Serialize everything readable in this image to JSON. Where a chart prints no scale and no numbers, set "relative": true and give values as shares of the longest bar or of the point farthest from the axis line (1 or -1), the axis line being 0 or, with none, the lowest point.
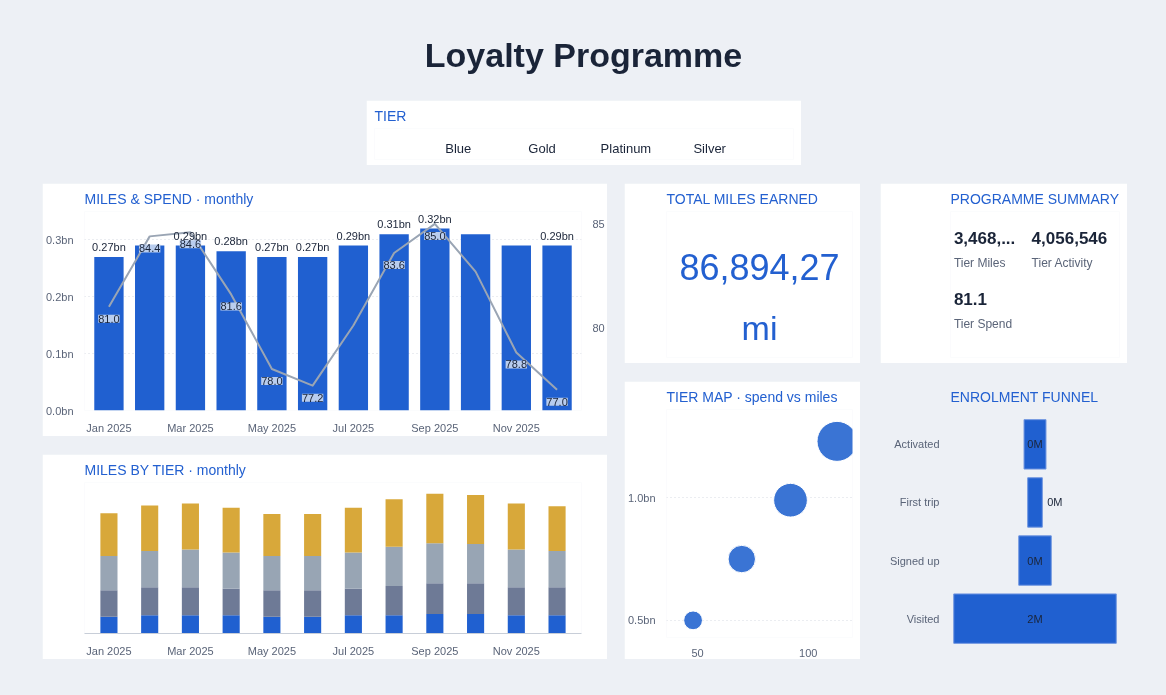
{
  "chart_data": [
    {
      "type": "other",
      "title": "Loyalty Programme"
    },
    {
      "type": "other",
      "title": "TIER",
      "annotations": [
        "Blue",
        "Gold",
        "Platinum",
        "Silver"
      ]
    },
    {
      "type": "bar",
      "title": "MILES & SPEND · monthly",
      "categories": [
        "Jan 2025",
        null,
        "Mar 2025",
        null,
        "May 2025",
        null,
        "Jul 2025",
        null,
        "Sep 2025",
        null,
        "Nov 2025",
        null
      ],
      "series": [
        {
          "type": "bar",
          "color": "#2060d0",
          "values": [
            0.27,
            0.29,
            0.29,
            0.28,
            0.27,
            0.27,
            0.29,
            0.31,
            0.32,
            0.31,
            0.29,
            0.29
          ],
          "value_labels": [
            "0.27bn",
            null,
            "0.29bn",
            "0.28bn",
            "0.27bn",
            "0.27bn",
            "0.29bn",
            "0.31bn",
            "0.32bn",
            null,
            null,
            "0.29bn"
          ]
        },
        {
          "type": "line",
          "axis": "y2",
          "marker": "none",
          "color": "#9aa5b4",
          "values": [
            81.0,
            84.4,
            84.6,
            81.6,
            78.0,
            77.2,
            80.1,
            83.6,
            85.0,
            82.7,
            78.8,
            77.0
          ],
          "value_labels": [
            "81.0",
            "84.4",
            "84.6",
            "81.6",
            "78.0",
            "77.2",
            null,
            "83.6",
            "85.0",
            null,
            "78.8",
            "77.0"
          ]
        }
      ],
      "ylim": [
        0,
        0.35
      ],
      "yticks": [
        {
          "value": 0,
          "label": "0.0bn"
        },
        {
          "value": 0.1,
          "label": "0.1bn"
        },
        {
          "value": 0.2,
          "label": "0.2bn"
        },
        {
          "value": 0.3,
          "label": "0.3bn"
        }
      ],
      "y2lim": [
        76,
        85.6
      ],
      "y2ticks": [
        80,
        85
      ],
      "grid": "y"
    },
    {
      "type": "other",
      "title": "TOTAL MILES EARNED",
      "annotations": [
        "86,894,27",
        "mi"
      ]
    },
    {
      "type": "other",
      "title": "PROGRAMME SUMMARY",
      "annotations": [
        "3,468,...",
        "Tier Miles",
        "4,056,546",
        "Tier Activity",
        "81.1",
        "Tier Spend"
      ]
    },
    {
      "type": "bar",
      "title": "MILES BY TIER · monthly",
      "relative": true,
      "stacked": true,
      "categories": [
        "Jan 2025",
        null,
        "Mar 2025",
        null,
        "May 2025",
        null,
        "Jul 2025",
        null,
        "Sep 2025",
        null,
        "Nov 2025",
        null
      ],
      "series": [
        {
          "type": "bar",
          "color": "#2060d0",
          "values": [
            0.12,
            0.13,
            0.13,
            0.13,
            0.12,
            0.12,
            0.13,
            0.13,
            0.14,
            0.14,
            0.13,
            0.13
          ]
        },
        {
          "type": "bar",
          "color": "#6e7a96",
          "values": [
            0.19,
            0.2,
            0.2,
            0.19,
            0.19,
            0.19,
            0.19,
            0.21,
            0.22,
            0.22,
            0.2,
            0.2
          ]
        },
        {
          "type": "bar",
          "color": "#98a5b4",
          "values": [
            0.245,
            0.26,
            0.27,
            0.26,
            0.245,
            0.245,
            0.26,
            0.28,
            0.285,
            0.28,
            0.27,
            0.26
          ]
        },
        {
          "type": "bar",
          "color": "#d8a83a",
          "values": [
            0.305,
            0.325,
            0.33,
            0.32,
            0.3,
            0.3,
            0.32,
            0.34,
            0.355,
            0.35,
            0.33,
            0.32
          ]
        }
      ]
    },
    {
      "type": "bubble",
      "title": "TIER MAP · spend vs miles",
      "color": "#3a74d4",
      "x": [
        48,
        70,
        92,
        113
      ],
      "values": [
        0.5,
        0.75,
        0.99,
        1.23
      ],
      "sizes": [
        0.22,
        0.47,
        0.71,
        1
      ],
      "xlim": [
        36,
        120
      ],
      "ylim": [
        0.43,
        1.36
      ],
      "xticks": [
        50,
        100
      ],
      "yticks": [
        {
          "value": 0.5,
          "label": "0.5bn"
        },
        {
          "value": 1.0,
          "label": "1.0bn"
        }
      ],
      "grid": "y"
    },
    {
      "type": "other",
      "title": "ENROLMENT FUNNEL",
      "colors": [
        "#2060d0",
        "#2060d0",
        "#2060d0",
        "#2060d0"
      ],
      "categories": [
        "Activated",
        "First trip",
        "Signed up",
        "Visited"
      ],
      "values": [
        0.27,
        0.18,
        0.4,
        2
      ],
      "value_labels": [
        "0M",
        "0M",
        "0M",
        "2M"
      ]
    }
  ]
}
